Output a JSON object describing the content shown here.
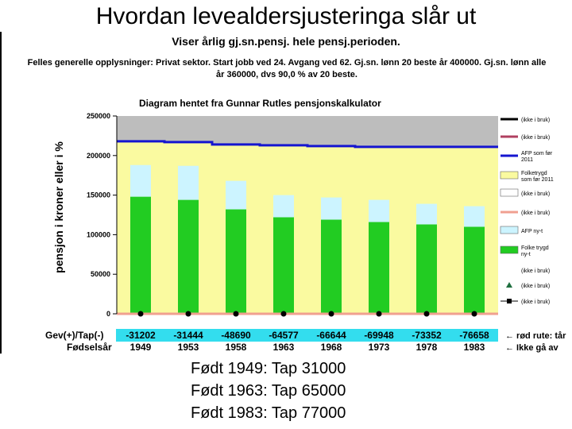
{
  "title": "Hvordan levealdersjusteringa slår ut",
  "subtitle": "Viser årlig gj.sn.pensj. hele pensj.perioden.",
  "info_lines": [
    "Felles generelle opplysninger: Privat sektor. Start jobb ved 24. Avgang ved 62. Gj.sn. lønn 20 beste år 400000. Gj.sn. lønn alle",
    "år 360000, dvs 90,0 % av 20 beste."
  ],
  "footer_lines": [
    "Født 1949: Tap 31000",
    "Født 1963: Tap 65000",
    "Født 1983: Tap 77000"
  ],
  "chart_data": {
    "type": "bar",
    "title": "Diagram hentet fra Gunnar Rutles pensjonskalkulator",
    "ylabel": "pensjon i kroner eller i %",
    "ylim": [
      0,
      250000
    ],
    "yticks": [
      "0",
      "50000",
      "100000",
      "150000",
      "200000",
      "250000"
    ],
    "categories": [
      "1949",
      "1953",
      "1958",
      "1963",
      "1968",
      "1973",
      "1978",
      "1983"
    ],
    "series": [
      {
        "name": "Folke trygd ny-t",
        "kind": "stacked-bar",
        "color": "#22cc22",
        "values": [
          148000,
          144000,
          132000,
          122000,
          119000,
          116000,
          113000,
          110000
        ]
      },
      {
        "name": "AFP ny-t",
        "kind": "stacked-bar",
        "color": "#ccf4ff",
        "values": [
          40000,
          43000,
          36000,
          28000,
          28000,
          28000,
          26000,
          26000
        ]
      },
      {
        "name": "Folketrygd som før 2011",
        "kind": "area",
        "color": "#fafaa0",
        "values": [
          218000,
          217000,
          214000,
          213000,
          212000,
          211000,
          211000,
          211000
        ]
      },
      {
        "name": "AFP som før 2011",
        "kind": "line",
        "color": "#1515d0",
        "values": [
          218000,
          217000,
          214000,
          213000,
          212000,
          211000,
          211000,
          211000
        ]
      },
      {
        "name": "(ikke i bruk)",
        "kind": "area",
        "color": "#bdbdbd",
        "values": [
          250000,
          250000,
          250000,
          250000,
          250000,
          250000,
          250000,
          250000
        ]
      }
    ],
    "legend_position": "right",
    "legend_items": [
      {
        "label": "(ikke i bruk)",
        "color": "#000000",
        "swatch": "line"
      },
      {
        "label": "(ikke i bruk)",
        "color": "#b04060",
        "swatch": "line"
      },
      {
        "label": "AFP som før 2011",
        "color": "#1515d0",
        "swatch": "line"
      },
      {
        "label": "Folketrygd som før 2011",
        "color": "#fafaa0",
        "swatch": "box"
      },
      {
        "label": "(ikke i bruk)",
        "color": "#ffffff",
        "swatch": "box"
      },
      {
        "label": "(ikke i bruk)",
        "color": "#f0a090",
        "swatch": "line"
      },
      {
        "label": "AFP ny-t",
        "color": "#ccf4ff",
        "swatch": "box"
      },
      {
        "label": "Folke trygd ny-t",
        "color": "#22cc22",
        "swatch": "box"
      },
      {
        "label": "(ikke i bruk)",
        "color": "#ffffff",
        "swatch": "none"
      },
      {
        "label": "(ikke i bruk)",
        "color": "#1f6f3f",
        "swatch": "triangle"
      },
      {
        "label": "(ikke i bruk)",
        "color": "#000000",
        "swatch": "square"
      }
    ],
    "gain_loss": {
      "label": "Gev(+)/Tap(-)",
      "values": [
        "-31202",
        "-31444",
        "-48690",
        "-64577",
        "-66644",
        "-69948",
        "-73352",
        "-76658"
      ],
      "note": "← rød rute: tår"
    },
    "birth_year": {
      "label": "Fødselsår",
      "note": "← Ikke gå av"
    },
    "colors": {
      "gain_loss_row_bg": "#33ddee",
      "baseline_line": "#f0a090",
      "zero_markers": "#000000"
    }
  }
}
